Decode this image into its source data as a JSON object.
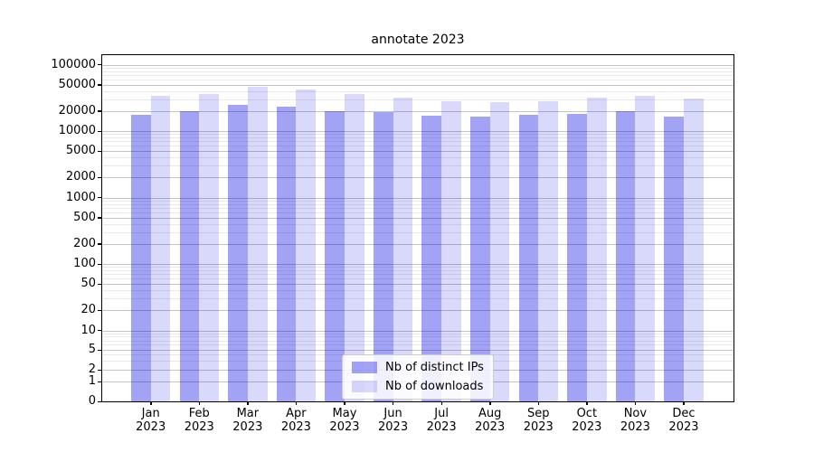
{
  "chart_data": {
    "type": "bar",
    "title": "annotate 2023",
    "categories": [
      "Jan",
      "Feb",
      "Mar",
      "Apr",
      "May",
      "Jun",
      "Jul",
      "Aug",
      "Sep",
      "Oct",
      "Nov",
      "Dec"
    ],
    "x_year": "2023",
    "series": [
      {
        "name": "Nb of distinct IPs",
        "color": "#0000e6",
        "alpha": 0.36,
        "values": [
          17700,
          20000,
          24800,
          23100,
          20100,
          19100,
          16900,
          16600,
          17400,
          18300,
          19900,
          16500
        ]
      },
      {
        "name": "Nb of downloads",
        "color": "#0000e6",
        "alpha": 0.15,
        "values": [
          33500,
          36000,
          47000,
          42000,
          35800,
          32200,
          28400,
          27000,
          28400,
          31600,
          34200,
          30600
        ]
      }
    ],
    "yscale": "symlog",
    "y_ticks": [
      0,
      1,
      2,
      5,
      10,
      20,
      50,
      100,
      200,
      500,
      1000,
      2000,
      5000,
      10000,
      20000,
      50000,
      100000
    ],
    "ylim": [
      0,
      140000
    ],
    "grid": true,
    "legend_position": "lower center",
    "colors": {
      "bar_strong_on_white": "#a3a3f6",
      "bar_light_on_white": "#d9d9fb",
      "grid_major": "#c3c3c3",
      "grid_minor": "#e9e9e9",
      "axis": "#000000"
    }
  }
}
